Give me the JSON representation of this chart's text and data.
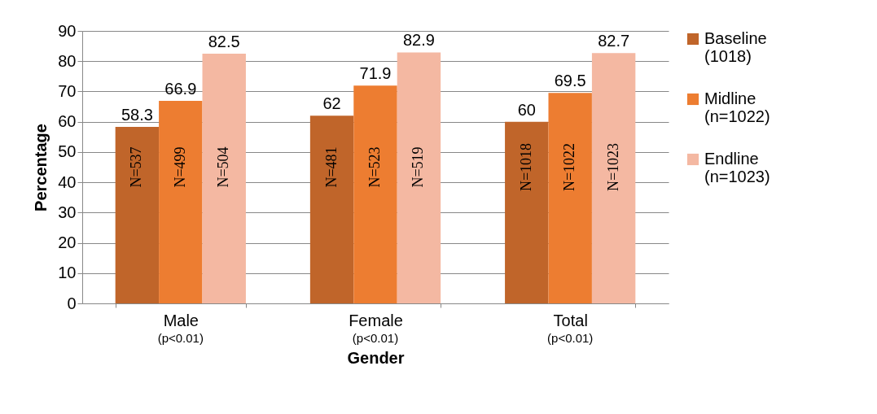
{
  "chart_data": {
    "type": "bar",
    "xlabel": "Gender",
    "ylabel": "Percentage",
    "categories": [
      "Male",
      "Female",
      "Total"
    ],
    "series": [
      {
        "name": "Baseline (1018)",
        "color": "#c0652a",
        "values": [
          58.3,
          62,
          60
        ]
      },
      {
        "name": "Midline (n=1022)",
        "color": "#ed7d31",
        "values": [
          66.9,
          71.9,
          69.5
        ]
      },
      {
        "name": "Endline (n=1023)",
        "color": "#f4b8a2",
        "values": [
          82.5,
          82.9,
          82.7
        ]
      }
    ],
    "ylim": [
      0,
      90
    ],
    "yticks": [
      0,
      10,
      20,
      30,
      40,
      50,
      60,
      70,
      80,
      90
    ],
    "grid": "y",
    "legend": "right",
    "data_labels": true,
    "annotations": [
      "(p<0.01)",
      "(p<0.01)",
      "(p<0.01)",
      "N=537",
      "N=499",
      "N=504",
      "N=481",
      "N=523",
      "N=519",
      "N=1018",
      "N=1022",
      "N=1023"
    ]
  }
}
